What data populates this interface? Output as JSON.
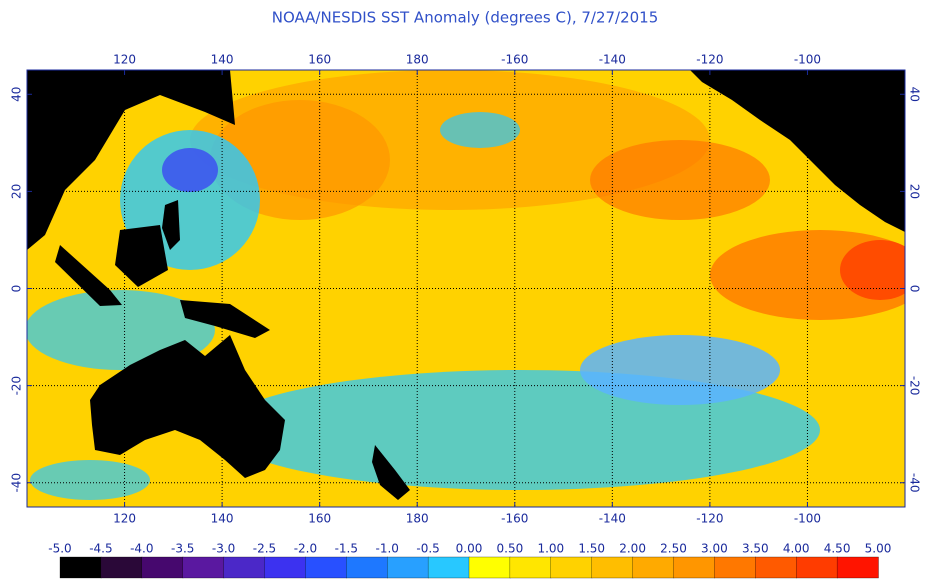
{
  "map": {
    "title": "NOAA/NESDIS SST Anomaly (degrees C), 7/27/2015",
    "lonlim": [
      100,
      280
    ],
    "latlim": [
      -45,
      45
    ],
    "lon_ticks": [
      {
        "value": 120,
        "label": "120"
      },
      {
        "value": 140,
        "label": "140"
      },
      {
        "value": 160,
        "label": "160"
      },
      {
        "value": 180,
        "label": "180"
      },
      {
        "value": 200,
        "label": "-160"
      },
      {
        "value": 220,
        "label": "-140"
      },
      {
        "value": 240,
        "label": "-120"
      },
      {
        "value": 260,
        "label": "-100"
      }
    ],
    "lat_ticks": [
      40,
      20,
      0,
      -20,
      -40
    ],
    "grid": true,
    "colorbar": {
      "labels": [
        {
          "value": -5,
          "label": "-5.0"
        },
        {
          "value": -4.5,
          "label": "-4.5"
        },
        {
          "value": -4,
          "label": "-4.0"
        },
        {
          "value": -3.5,
          "label": "-3.5"
        },
        {
          "value": -3,
          "label": "-3.0"
        },
        {
          "value": -2.5,
          "label": "-2.5"
        },
        {
          "value": -2,
          "label": "-2.0"
        },
        {
          "value": -1.5,
          "label": "-1.5"
        },
        {
          "value": -1,
          "label": "-1.0"
        },
        {
          "value": -0.5,
          "label": "-0.5"
        },
        {
          "value": 0,
          "label": "0.00"
        },
        {
          "value": 0.5,
          "label": "0.50"
        },
        {
          "value": 1,
          "label": "1.00"
        },
        {
          "value": 1.5,
          "label": "1.50"
        },
        {
          "value": 2,
          "label": "2.00"
        },
        {
          "value": 2.5,
          "label": "2.50"
        },
        {
          "value": 3,
          "label": "3.00"
        },
        {
          "value": 3.5,
          "label": "3.50"
        },
        {
          "value": 4,
          "label": "4.00"
        },
        {
          "value": 4.5,
          "label": "4.50"
        },
        {
          "value": 5,
          "label": "5.00"
        }
      ],
      "colors": [
        "#000000",
        "#2a0838",
        "#46086e",
        "#5a18a0",
        "#4b28c8",
        "#3c32f0",
        "#2850ff",
        "#1e78ff",
        "#28a0ff",
        "#28c8ff",
        "#ffff00",
        "#ffe600",
        "#ffd200",
        "#ffbe00",
        "#ffaa00",
        "#ff9600",
        "#ff7800",
        "#ff5a00",
        "#ff3c00",
        "#ff1400"
      ]
    }
  }
}
